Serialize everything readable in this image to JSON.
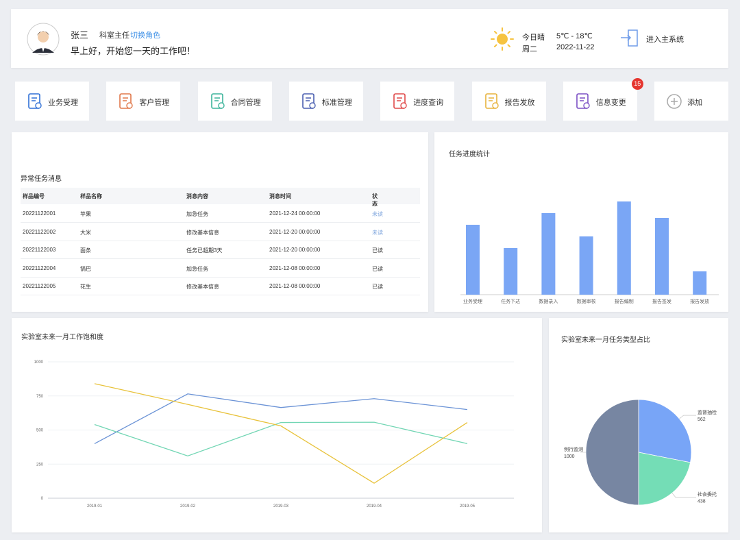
{
  "header": {
    "user_name": "张三",
    "role": "科室主任",
    "switch_role": "切换角色",
    "greeting": "早上好，开始您一天的工作吧！",
    "weather": "今日晴",
    "temperature": "5℃ - 18℃",
    "weekday": "周二",
    "date": "2022-11-22",
    "enter_system": "进入主系统"
  },
  "shortcuts": [
    {
      "label": "业务受理"
    },
    {
      "label": "客户管理"
    },
    {
      "label": "合同管理"
    },
    {
      "label": "标准管理"
    },
    {
      "label": "进度查询"
    },
    {
      "label": "报告发放"
    },
    {
      "label": "信息变更",
      "badge": 15
    },
    {
      "label": "添加"
    }
  ],
  "table": {
    "title": "异常任务消息",
    "columns": [
      "样品编号",
      "样品名称",
      "消息内容",
      "消息时间",
      "状态"
    ],
    "rows": [
      [
        "20221122001",
        "苹果",
        "加急任务",
        "2021-12-24 00:00:00",
        "未读"
      ],
      [
        "20221122002",
        "大米",
        "修改基本信息",
        "2021-12-20 00:00:00",
        "未读"
      ],
      [
        "20221122003",
        "面条",
        "任务已超期3天",
        "2021-12-20 00:00:00",
        "已读"
      ],
      [
        "20221122004",
        "锅巴",
        "加急任务",
        "2021-12-08 00:00:00",
        "已读"
      ],
      [
        "20221122005",
        "花生",
        "修改基本信息",
        "2021-12-08 00:00:00",
        "已读"
      ]
    ]
  },
  "chart_data": [
    {
      "type": "bar",
      "title": "任务进度统计",
      "categories": [
        "业务受理",
        "任务下达",
        "数据录入",
        "数据审核",
        "报告编制",
        "报告签发",
        "报告发放"
      ],
      "values": [
        102,
        68,
        119,
        85,
        136,
        112,
        34
      ],
      "color": "#7aa6f5"
    },
    {
      "type": "line",
      "title": "实验室未来一月工作饱和度",
      "x": [
        "2019-01",
        "2019-02",
        "2019-03",
        "2019-04",
        "2019-05"
      ],
      "ylim": [
        0,
        1000
      ],
      "yticks": [
        0,
        250,
        500,
        750,
        1000
      ],
      "grid": true,
      "series": [
        {
          "color": "#6b93d6",
          "values": [
            400,
            765,
            665,
            730,
            650
          ]
        },
        {
          "color": "#72d6b4",
          "values": [
            540,
            310,
            555,
            557,
            400
          ]
        },
        {
          "color": "#e8c23a",
          "values": [
            840,
            688,
            530,
            110,
            555
          ]
        }
      ]
    },
    {
      "type": "pie",
      "title": "实验室未来一月任务类型占比",
      "categories": [
        "监督抽检",
        "社会委托",
        "例行监测"
      ],
      "values": [
        562,
        438,
        1000
      ],
      "colors": [
        "#78a5f7",
        "#74ddb6",
        "#7786a2"
      ]
    }
  ]
}
